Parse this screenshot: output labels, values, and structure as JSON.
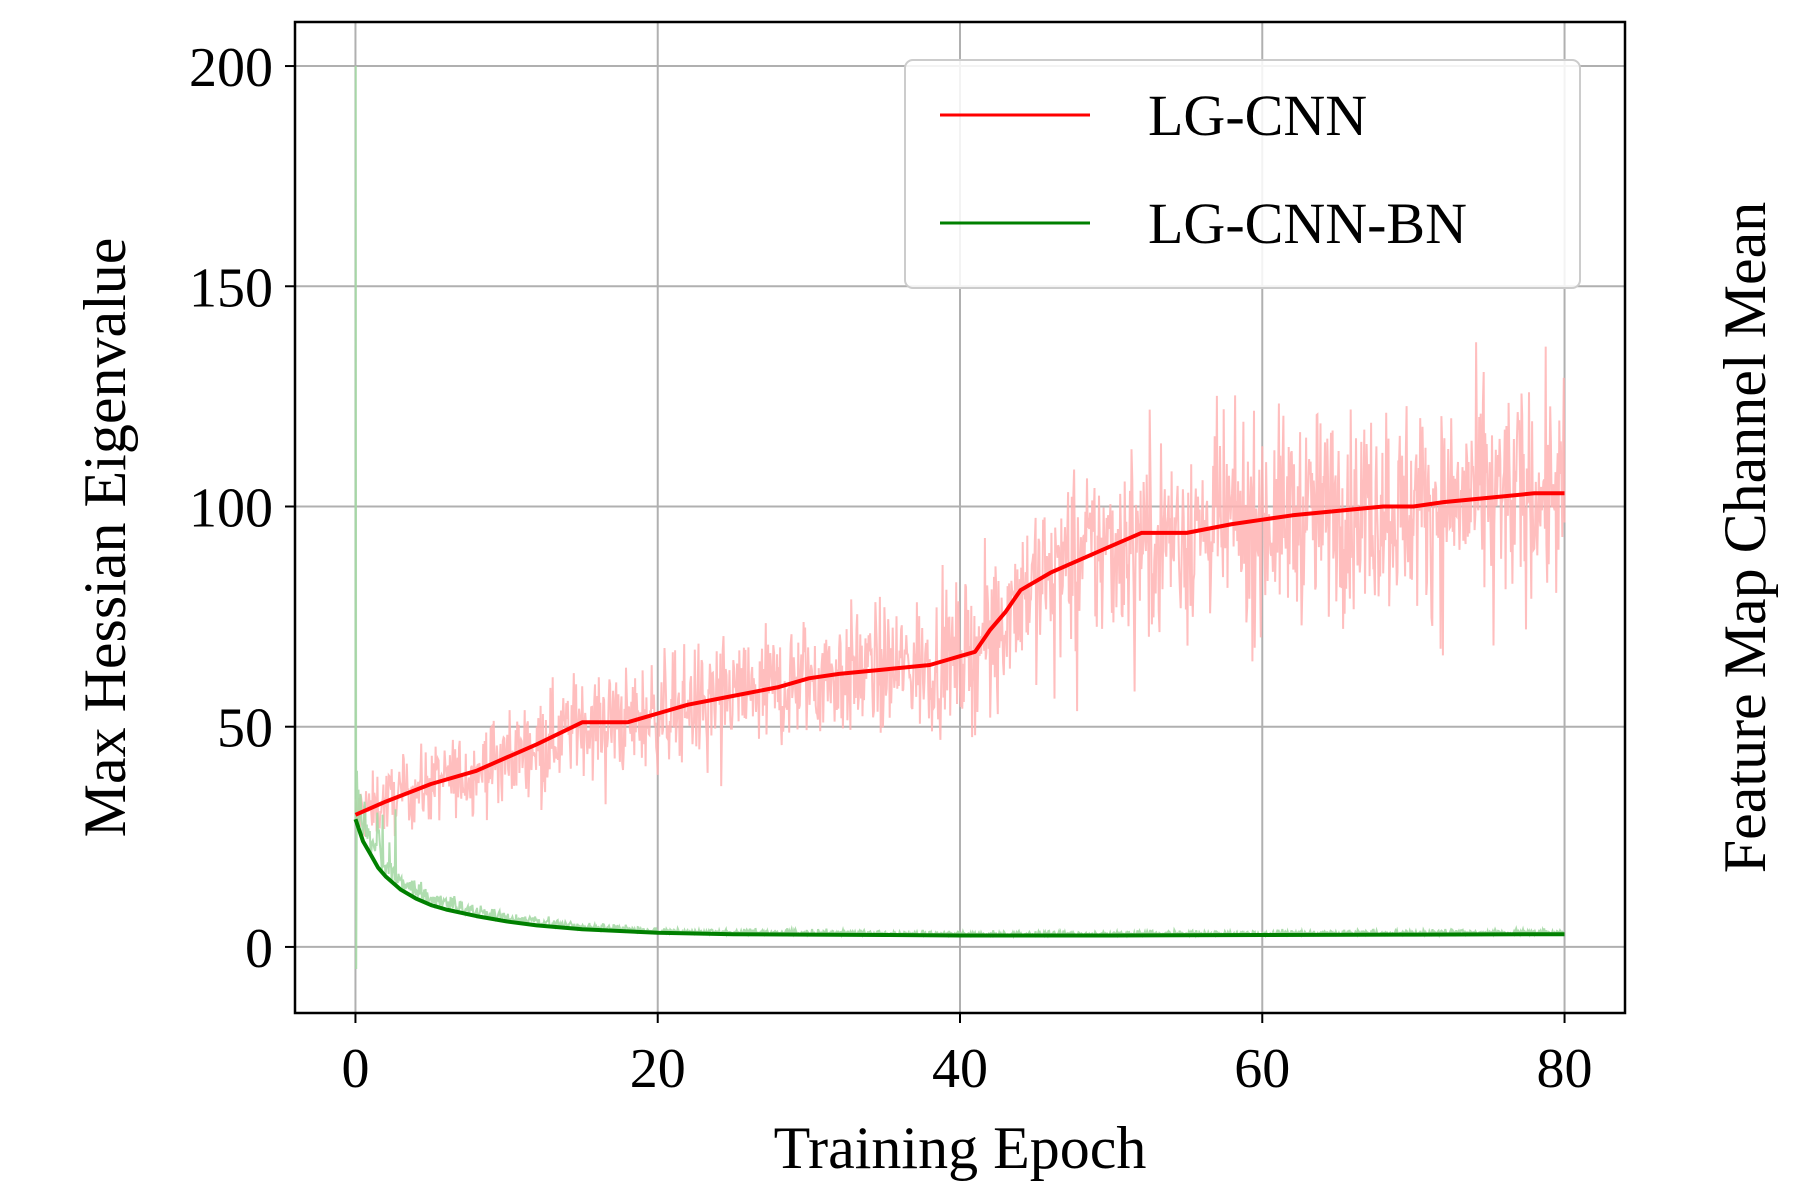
{
  "chart_data": {
    "type": "line",
    "title": "",
    "xlabel": "Training Epoch",
    "ylabel": "Max Hessian Eigenvalue",
    "secondary_ylabel": "Feature Map Channel Mean",
    "xlim": [
      -4,
      84
    ],
    "ylim": [
      -15,
      210
    ],
    "xticks": [
      0,
      20,
      40,
      60,
      80
    ],
    "yticks": [
      0,
      50,
      100,
      150,
      200
    ],
    "grid": true,
    "legend": "top-right",
    "colors": {
      "lgcnn": "#ff0000",
      "lgcnn_raw": "#ffb3b3",
      "lgcnnbn": "#008000",
      "lgcnnbn_raw": "#a6d9a6"
    },
    "series": [
      {
        "name": "LG-CNN",
        "color": "#ff0000",
        "x": [
          0,
          2,
          5,
          8,
          10,
          12,
          15,
          18,
          20,
          22,
          25,
          28,
          30,
          32,
          35,
          38,
          40,
          41,
          42,
          43,
          44,
          46,
          48,
          50,
          52,
          55,
          58,
          60,
          62,
          65,
          68,
          70,
          72,
          75,
          78,
          80
        ],
        "y": [
          30,
          33,
          37,
          40,
          43,
          46,
          51,
          51,
          53,
          55,
          57,
          59,
          61,
          62,
          63,
          64,
          66,
          67,
          72,
          76,
          81,
          85,
          88,
          91,
          94,
          94,
          96,
          97,
          98,
          99,
          100,
          100,
          101,
          102,
          103,
          103
        ]
      },
      {
        "name": "LG-CNN-BN",
        "color": "#008000",
        "x": [
          0,
          0.5,
          1,
          1.5,
          2,
          3,
          4,
          5,
          6,
          8,
          10,
          12,
          15,
          20,
          25,
          30,
          35,
          40,
          45,
          50,
          60,
          70,
          80
        ],
        "y": [
          29,
          24,
          21,
          18,
          16,
          13,
          11,
          9.5,
          8.5,
          7,
          5.8,
          4.9,
          4.0,
          3.2,
          2.9,
          2.8,
          2.7,
          2.6,
          2.6,
          2.6,
          2.7,
          2.8,
          2.9
        ]
      }
    ],
    "raw_noise": {
      "LG-CNN": {
        "relative_amplitude": 0.22,
        "x_start": 0,
        "x_end": 80
      },
      "LG-CNN-BN": {
        "spike_peak": 200,
        "spike_x": 0,
        "relative_amplitude": 0.35
      }
    }
  }
}
